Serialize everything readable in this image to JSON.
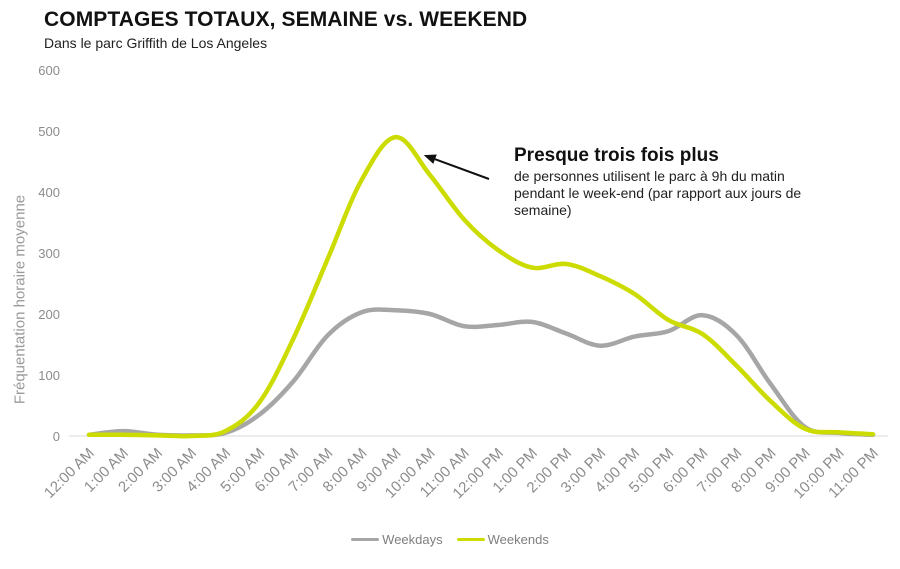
{
  "chart_data": {
    "type": "line",
    "title": "COMPTAGES TOTAUX, SEMAINE vs. WEEKEND",
    "subtitle": "Dans le parc Griffith de Los Angeles",
    "ylabel": "Fréquentation horaire moyenne",
    "xlabel": "",
    "ylim": [
      0,
      600
    ],
    "yticks": [
      0,
      100,
      200,
      300,
      400,
      500,
      600
    ],
    "grid": false,
    "legend": "bottom",
    "categories": [
      "12:00 AM",
      "1:00 AM",
      "2:00 AM",
      "3:00 AM",
      "4:00 AM",
      "5:00 AM",
      "6:00 AM",
      "7:00 AM",
      "8:00 AM",
      "9:00 AM",
      "10:00 AM",
      "11:00 AM",
      "12:00 PM",
      "1:00 PM",
      "2:00 PM",
      "3:00 PM",
      "4:00 PM",
      "5:00 PM",
      "6:00 PM",
      "7:00 PM",
      "8:00 PM",
      "9:00 PM",
      "10:00 PM",
      "11:00 PM"
    ],
    "series": [
      {
        "name": "Weekdays",
        "color": "#a6a6a6",
        "values": [
          2,
          8,
          2,
          1,
          5,
          35,
          90,
          165,
          203,
          206,
          200,
          180,
          182,
          187,
          168,
          148,
          163,
          172,
          198,
          165,
          85,
          15,
          5,
          2
        ]
      },
      {
        "name": "Weekends",
        "color": "#ccdc00",
        "values": [
          2,
          2,
          1,
          0,
          8,
          55,
          160,
          290,
          420,
          490,
          428,
          355,
          305,
          276,
          282,
          262,
          233,
          190,
          167,
          115,
          57,
          12,
          6,
          3
        ]
      }
    ],
    "annotation": {
      "heading": "Presque trois fois plus",
      "text": "de personnes utilisent le parc à 9h du matin pendant le week-end (par rapport aux jours de semaine)",
      "target_category": "9:00 AM",
      "target_series": "Weekends"
    }
  }
}
